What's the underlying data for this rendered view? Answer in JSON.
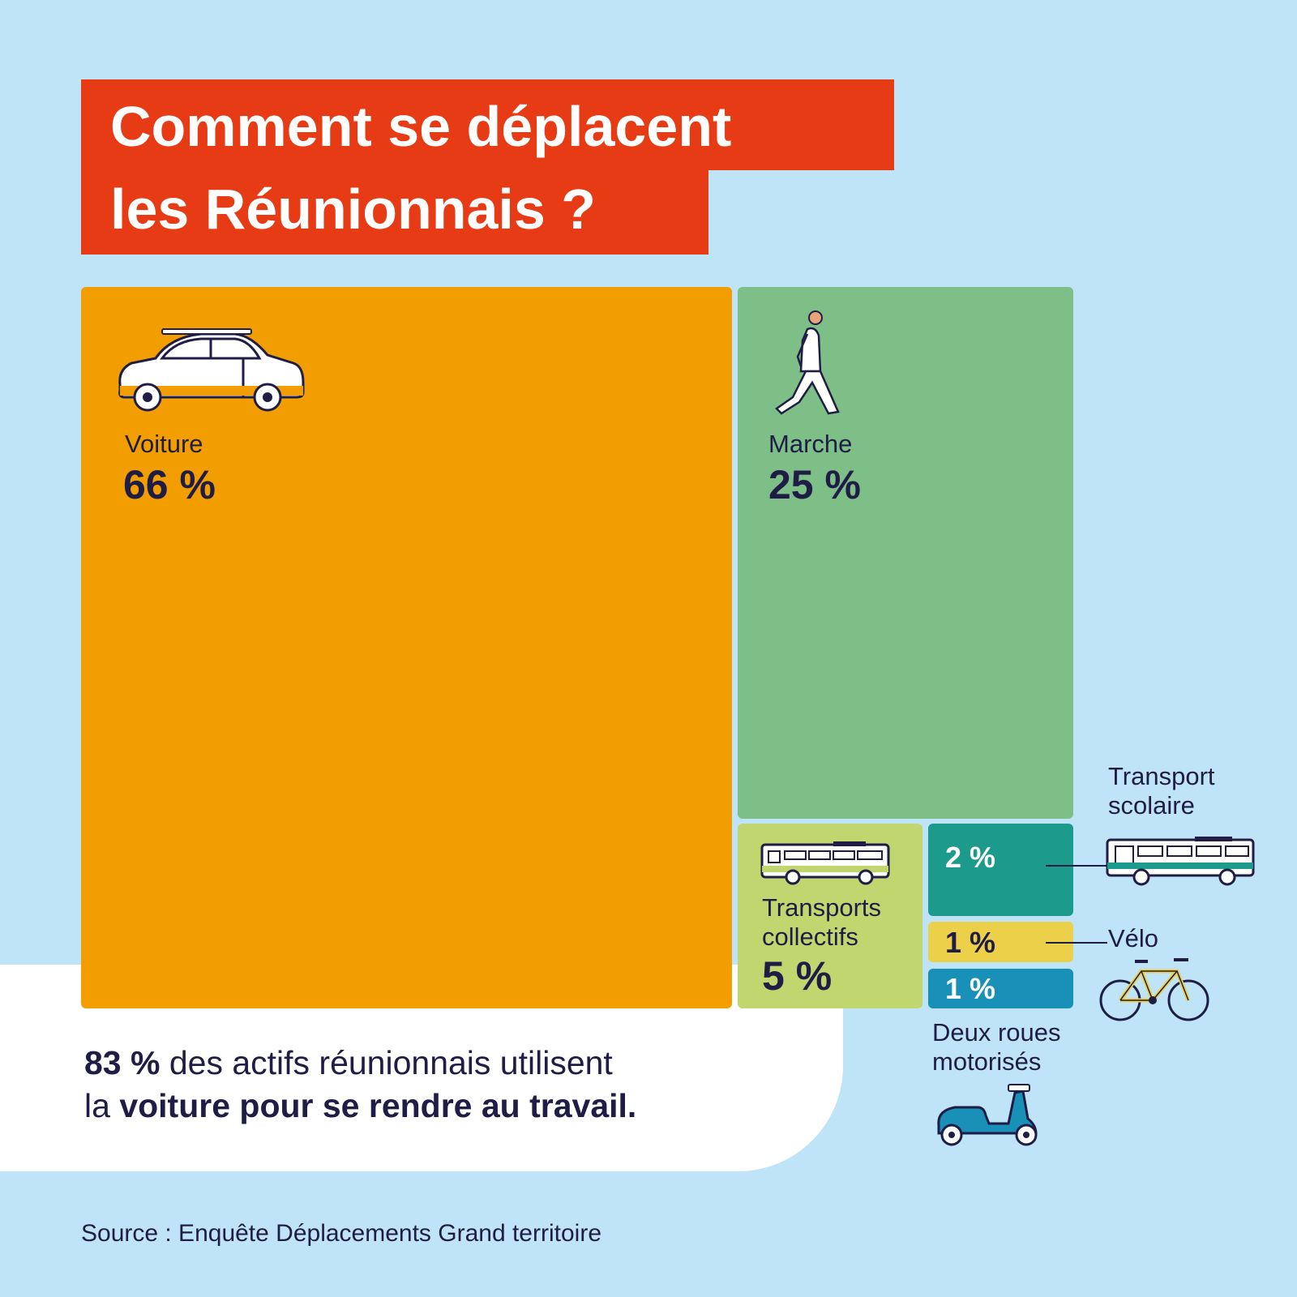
{
  "title": {
    "line1": "Comment se déplacent",
    "line2": "les Réunionnais ?"
  },
  "summary": {
    "part1_bold": "83 %",
    "part2": " des actifs réunionnais utilisent",
    "part3": "la ",
    "part4_bold": "voiture pour se rendre au travail."
  },
  "source": "Source : Enquête Déplacements Grand territoire",
  "chart_data": {
    "type": "treemap",
    "unit": "%",
    "items": [
      {
        "label": "Voiture",
        "value": 66,
        "value_label": "66 %",
        "color": "#f29e00",
        "icon": "car-icon"
      },
      {
        "label": "Marche",
        "value": 25,
        "value_label": "25 %",
        "color": "#7dbf86",
        "icon": "walking-person-icon"
      },
      {
        "label": "Transports collectifs",
        "value": 5,
        "value_label": "5 %",
        "color": "#c1d66f",
        "icon": "bus-icon"
      },
      {
        "label": "Transport scolaire",
        "value": 2,
        "value_label": "2 %",
        "color": "#1c9a8c",
        "icon": "school-bus-icon"
      },
      {
        "label": "Vélo",
        "value": 1,
        "value_label": "1 %",
        "color": "#ecd04a",
        "icon": "bicycle-icon"
      },
      {
        "label": "Deux roues motorisés",
        "value": 1,
        "value_label": "1 %",
        "color": "#1990b8",
        "icon": "scooter-icon"
      }
    ]
  }
}
